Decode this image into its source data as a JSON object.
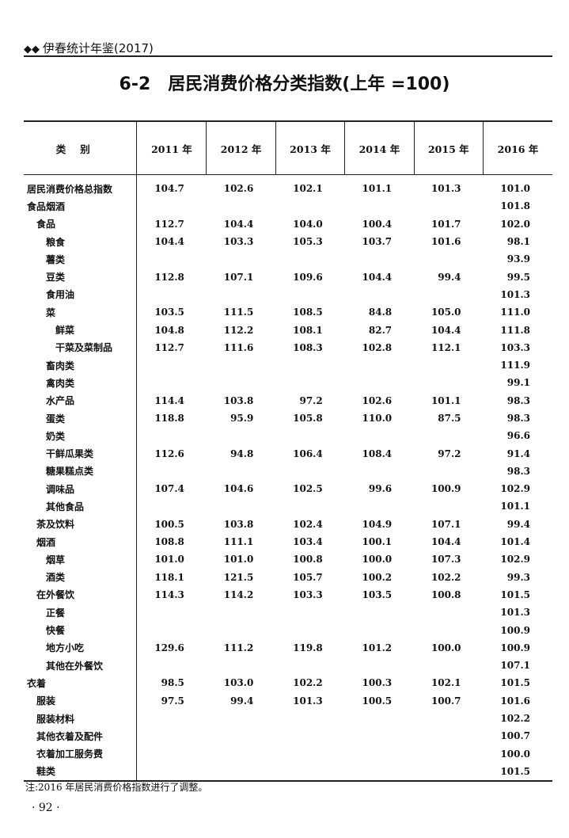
{
  "running_header": {
    "marker": "◆◆",
    "text": "伊春统计年鉴(2017)"
  },
  "title": {
    "number": "6-2",
    "text": "居民消费价格分类指数(上年 =100)"
  },
  "table": {
    "category_header": "类别",
    "columns": [
      "2011 年",
      "2012 年",
      "2013 年",
      "2014 年",
      "2015 年",
      "2016 年"
    ],
    "rows": [
      {
        "name": "居民消费价格总指数",
        "level": 0,
        "values": [
          "104.7",
          "102.6",
          "102.1",
          "101.1",
          "101.3",
          "101.0"
        ]
      },
      {
        "name": "食品烟酒",
        "level": 0,
        "values": [
          "",
          "",
          "",
          "",
          "",
          "101.8"
        ]
      },
      {
        "name": "食品",
        "level": 1,
        "values": [
          "112.7",
          "104.4",
          "104.0",
          "100.4",
          "101.7",
          "102.0"
        ]
      },
      {
        "name": "粮食",
        "level": 2,
        "values": [
          "104.4",
          "103.3",
          "105.3",
          "103.7",
          "101.6",
          "98.1"
        ]
      },
      {
        "name": "薯类",
        "level": 2,
        "values": [
          "",
          "",
          "",
          "",
          "",
          "93.9"
        ]
      },
      {
        "name": "豆类",
        "level": 2,
        "values": [
          "112.8",
          "107.1",
          "109.6",
          "104.4",
          "99.4",
          "99.5"
        ]
      },
      {
        "name": "食用油",
        "level": 2,
        "values": [
          "",
          "",
          "",
          "",
          "",
          "101.3"
        ]
      },
      {
        "name": "菜",
        "level": 2,
        "values": [
          "103.5",
          "111.5",
          "108.5",
          "84.8",
          "105.0",
          "111.0"
        ]
      },
      {
        "name": "鲜菜",
        "level": 3,
        "values": [
          "104.8",
          "112.2",
          "108.1",
          "82.7",
          "104.4",
          "111.8"
        ]
      },
      {
        "name": "干菜及菜制品",
        "level": 3,
        "values": [
          "112.7",
          "111.6",
          "108.3",
          "102.8",
          "112.1",
          "103.3"
        ]
      },
      {
        "name": "畜肉类",
        "level": 2,
        "values": [
          "",
          "",
          "",
          "",
          "",
          "111.9"
        ]
      },
      {
        "name": "禽肉类",
        "level": 2,
        "values": [
          "",
          "",
          "",
          "",
          "",
          "99.1"
        ]
      },
      {
        "name": "水产品",
        "level": 2,
        "values": [
          "114.4",
          "103.8",
          "97.2",
          "102.6",
          "101.1",
          "98.3"
        ]
      },
      {
        "name": "蛋类",
        "level": 2,
        "values": [
          "118.8",
          "95.9",
          "105.8",
          "110.0",
          "87.5",
          "98.3"
        ]
      },
      {
        "name": "奶类",
        "level": 2,
        "values": [
          "",
          "",
          "",
          "",
          "",
          "96.6"
        ]
      },
      {
        "name": "干鲜瓜果类",
        "level": 2,
        "values": [
          "112.6",
          "94.8",
          "106.4",
          "108.4",
          "97.2",
          "91.4"
        ]
      },
      {
        "name": "糖果糕点类",
        "level": 2,
        "values": [
          "",
          "",
          "",
          "",
          "",
          "98.3"
        ]
      },
      {
        "name": "调味品",
        "level": 2,
        "values": [
          "107.4",
          "104.6",
          "102.5",
          "99.6",
          "100.9",
          "102.9"
        ]
      },
      {
        "name": "其他食品",
        "level": 2,
        "values": [
          "",
          "",
          "",
          "",
          "",
          "101.1"
        ]
      },
      {
        "name": "茶及饮料",
        "level": 1,
        "values": [
          "100.5",
          "103.8",
          "102.4",
          "104.9",
          "107.1",
          "99.4"
        ]
      },
      {
        "name": "烟酒",
        "level": 1,
        "values": [
          "108.8",
          "111.1",
          "103.4",
          "100.1",
          "104.4",
          "101.4"
        ]
      },
      {
        "name": "烟草",
        "level": 2,
        "values": [
          "101.0",
          "101.0",
          "100.8",
          "100.0",
          "107.3",
          "102.9"
        ]
      },
      {
        "name": "酒类",
        "level": 2,
        "values": [
          "118.1",
          "121.5",
          "105.7",
          "100.2",
          "102.2",
          "99.3"
        ]
      },
      {
        "name": "在外餐饮",
        "level": 1,
        "values": [
          "114.3",
          "114.2",
          "103.3",
          "103.5",
          "100.8",
          "101.5"
        ]
      },
      {
        "name": "正餐",
        "level": 2,
        "values": [
          "",
          "",
          "",
          "",
          "",
          "101.3"
        ]
      },
      {
        "name": "快餐",
        "level": 2,
        "values": [
          "",
          "",
          "",
          "",
          "",
          "100.9"
        ]
      },
      {
        "name": "地方小吃",
        "level": 2,
        "values": [
          "129.6",
          "111.2",
          "119.8",
          "101.2",
          "100.0",
          "100.9"
        ]
      },
      {
        "name": "其他在外餐饮",
        "level": 2,
        "values": [
          "",
          "",
          "",
          "",
          "",
          "107.1"
        ]
      },
      {
        "name": "衣着",
        "level": 0,
        "values": [
          "98.5",
          "103.0",
          "102.2",
          "100.3",
          "102.1",
          "101.5"
        ]
      },
      {
        "name": "服装",
        "level": 1,
        "values": [
          "97.5",
          "99.4",
          "101.3",
          "100.5",
          "100.7",
          "101.6"
        ]
      },
      {
        "name": "服装材料",
        "level": 1,
        "values": [
          "",
          "",
          "",
          "",
          "",
          "102.2"
        ]
      },
      {
        "name": "其他衣着及配件",
        "level": 1,
        "values": [
          "",
          "",
          "",
          "",
          "",
          "100.7"
        ]
      },
      {
        "name": "衣着加工服务费",
        "level": 1,
        "values": [
          "",
          "",
          "",
          "",
          "",
          "100.0"
        ]
      },
      {
        "name": "鞋类",
        "level": 1,
        "values": [
          "",
          "",
          "",
          "",
          "",
          "101.5"
        ]
      }
    ]
  },
  "note": "注:2016 年居民消费价格指数进行了调整。",
  "page_number": "· 92 ·"
}
